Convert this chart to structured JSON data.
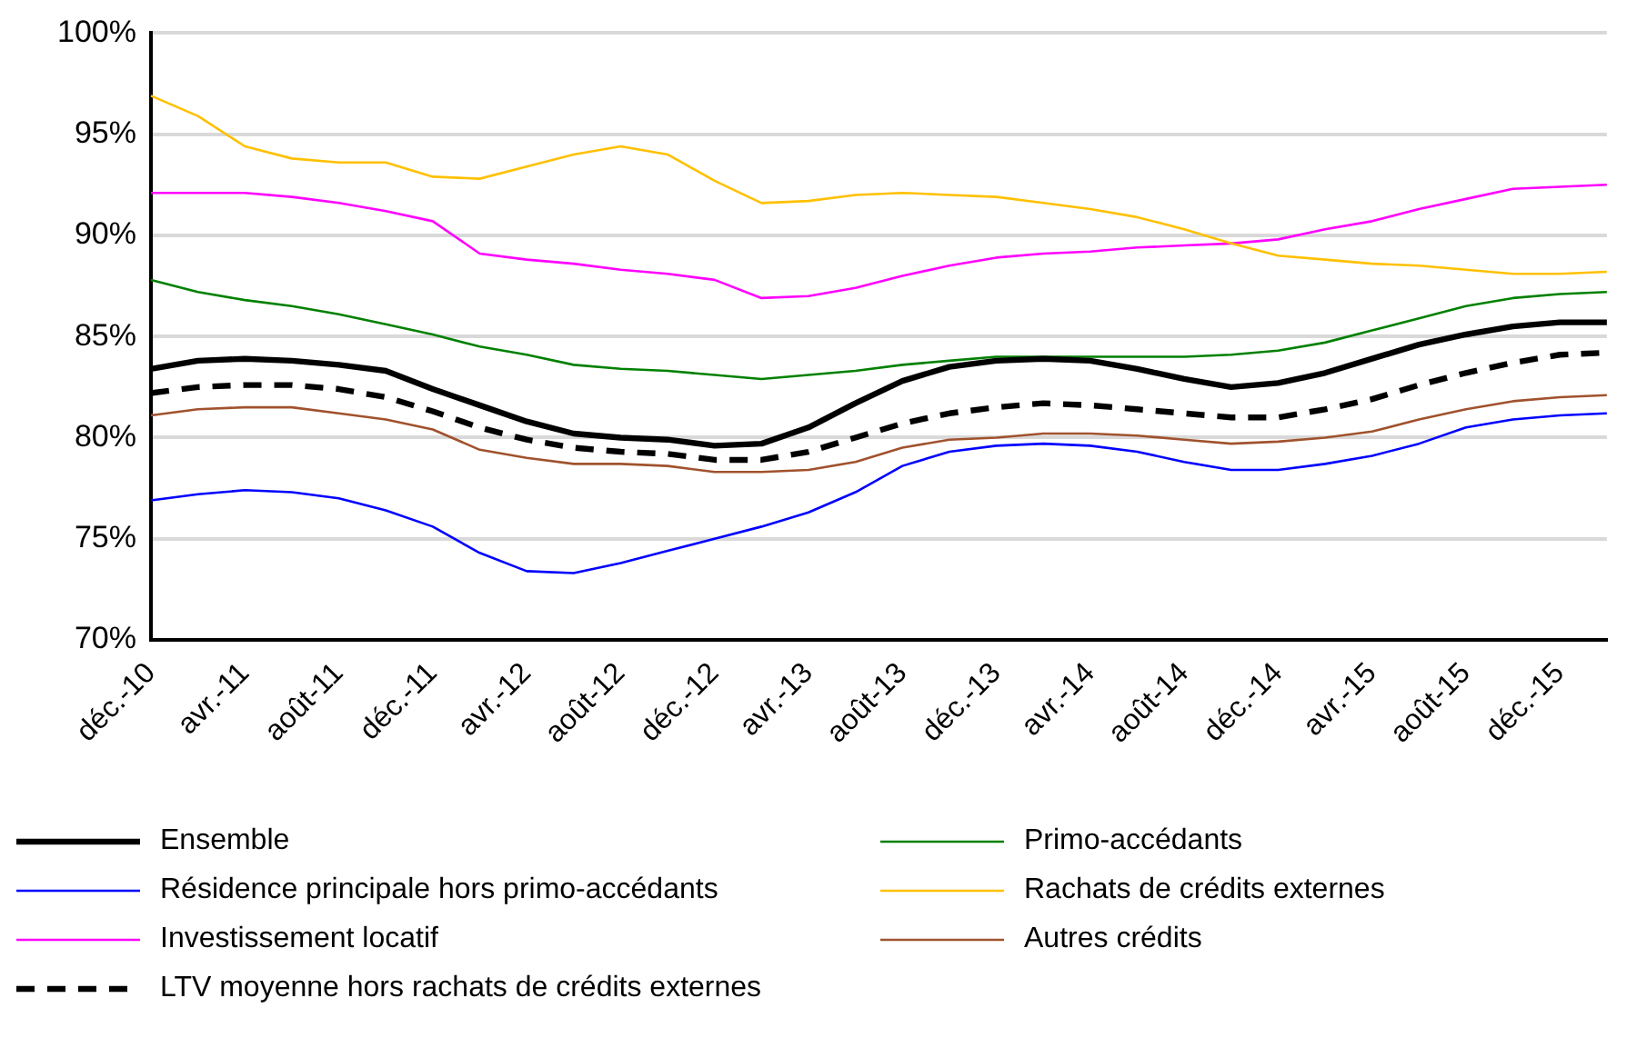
{
  "chart_data": {
    "type": "line",
    "categories": [
      "déc.-10",
      null,
      "avr.-11",
      null,
      "août-11",
      null,
      "déc.-11",
      null,
      "avr.-12",
      null,
      "août-12",
      null,
      "déc.-12",
      null,
      "avr.-13",
      null,
      "août-13",
      null,
      "déc.-13",
      null,
      "avr.-14",
      null,
      "août-14",
      null,
      "déc.-14",
      null,
      "avr.-15",
      null,
      "août-15",
      null,
      "déc.-15",
      null
    ],
    "series": [
      {
        "name": "Ensemble",
        "color": "#000000",
        "values": [
          83.4,
          83.8,
          83.9,
          83.8,
          83.6,
          83.3,
          82.4,
          81.6,
          80.8,
          80.2,
          80.0,
          79.9,
          79.6,
          79.7,
          80.5,
          81.7,
          82.8,
          83.5,
          83.8,
          83.9,
          83.8,
          83.4,
          82.9,
          82.5,
          82.7,
          83.2,
          83.9,
          84.6,
          85.1,
          85.5,
          85.7,
          85.7
        ]
      },
      {
        "name": "Primo-accédants",
        "color": "#008000",
        "values": [
          87.8,
          87.2,
          86.8,
          86.5,
          86.1,
          85.6,
          85.1,
          84.5,
          84.1,
          83.6,
          83.4,
          83.3,
          83.1,
          82.9,
          83.1,
          83.3,
          83.6,
          83.8,
          84.0,
          84.0,
          84.0,
          84.0,
          84.0,
          84.1,
          84.3,
          84.7,
          85.3,
          85.9,
          86.5,
          86.9,
          87.1,
          87.2
        ]
      },
      {
        "name": "Résidence principale hors primo-accédants",
        "color": "#0000ff",
        "values": [
          76.9,
          77.2,
          77.4,
          77.3,
          77.0,
          76.4,
          75.6,
          74.3,
          73.4,
          73.3,
          73.8,
          74.4,
          75.0,
          75.6,
          76.3,
          77.3,
          78.6,
          79.3,
          79.6,
          79.7,
          79.6,
          79.3,
          78.8,
          78.4,
          78.4,
          78.7,
          79.1,
          79.7,
          80.5,
          80.9,
          81.1,
          81.2
        ]
      },
      {
        "name": "Rachats de crédits externes",
        "color": "#ffc000",
        "values": [
          96.9,
          95.9,
          94.4,
          93.8,
          93.6,
          93.6,
          92.9,
          92.8,
          93.4,
          94.0,
          94.4,
          94.0,
          92.7,
          91.6,
          91.7,
          92.0,
          92.1,
          92.0,
          91.9,
          91.6,
          91.3,
          90.9,
          90.3,
          89.6,
          89.0,
          88.8,
          88.6,
          88.5,
          88.3,
          88.1,
          88.1,
          88.2
        ]
      },
      {
        "name": "Investissement locatif",
        "color": "#ff00ff",
        "values": [
          92.1,
          92.1,
          92.1,
          91.9,
          91.6,
          91.2,
          90.7,
          89.1,
          88.8,
          88.6,
          88.3,
          88.1,
          87.8,
          86.9,
          87.0,
          87.4,
          88.0,
          88.5,
          88.9,
          89.1,
          89.2,
          89.4,
          89.5,
          89.6,
          89.8,
          90.3,
          90.7,
          91.3,
          91.8,
          92.3,
          92.4,
          92.5
        ]
      },
      {
        "name": "Autres crédits",
        "color": "#a0522d",
        "values": [
          81.1,
          81.4,
          81.5,
          81.5,
          81.2,
          80.9,
          80.4,
          79.4,
          79.0,
          78.7,
          78.7,
          78.6,
          78.3,
          78.3,
          78.4,
          78.8,
          79.5,
          79.9,
          80.0,
          80.2,
          80.2,
          80.1,
          79.9,
          79.7,
          79.8,
          80.0,
          80.3,
          80.9,
          81.4,
          81.8,
          82.0,
          82.1
        ]
      },
      {
        "name": "LTV moyenne hors rachats de crédits externes",
        "color": "#000000",
        "line_style": "dashed",
        "values": [
          82.2,
          82.5,
          82.6,
          82.6,
          82.4,
          82.0,
          81.3,
          80.5,
          79.9,
          79.5,
          79.3,
          79.2,
          78.9,
          78.9,
          79.3,
          80.0,
          80.7,
          81.2,
          81.5,
          81.7,
          81.6,
          81.4,
          81.2,
          81.0,
          81.0,
          81.4,
          81.9,
          82.6,
          83.2,
          83.7,
          84.1,
          84.2
        ]
      }
    ],
    "ylim": [
      70,
      100
    ],
    "yticks": [
      {
        "value": 70,
        "label": "70%"
      },
      {
        "value": 75,
        "label": "75%"
      },
      {
        "value": 80,
        "label": "80%"
      },
      {
        "value": 85,
        "label": "85%"
      },
      {
        "value": 90,
        "label": "90%"
      },
      {
        "value": 95,
        "label": "95%"
      },
      {
        "value": 100,
        "label": "100%"
      }
    ],
    "grid": "y",
    "legend": "bottom",
    "marker": "none",
    "line_style": "solid"
  }
}
